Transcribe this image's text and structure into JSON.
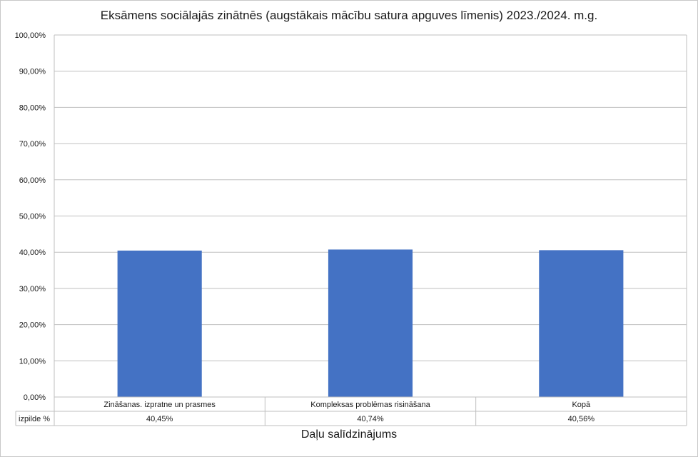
{
  "chart_data": {
    "type": "bar",
    "title": "Eksāmens sociālajās zinātnēs (augstākais mācību satura apguves līmenis) 2023./2024. m.g.",
    "xlabel": "Daļu salīdzinājums",
    "ylabel": "",
    "categories": [
      "Zināšanas. izpratne un prasmes",
      "Kompleksas problēmas risināšana",
      "Kopā"
    ],
    "series": [
      {
        "name": "izpilde %",
        "values": [
          40.45,
          40.74,
          40.56
        ],
        "value_labels": [
          "40,45%",
          "40,74%",
          "40,56%"
        ],
        "color": "#4472c4"
      }
    ],
    "ylim": [
      0,
      100
    ],
    "yticks": [
      0,
      10,
      20,
      30,
      40,
      50,
      60,
      70,
      80,
      90,
      100
    ],
    "ytick_labels": [
      "0,00%",
      "10,00%",
      "20,00%",
      "30,00%",
      "40,00%",
      "50,00%",
      "60,00%",
      "70,00%",
      "80,00%",
      "90,00%",
      "100,00%"
    ],
    "grid": true,
    "legend": "data table below chart"
  }
}
